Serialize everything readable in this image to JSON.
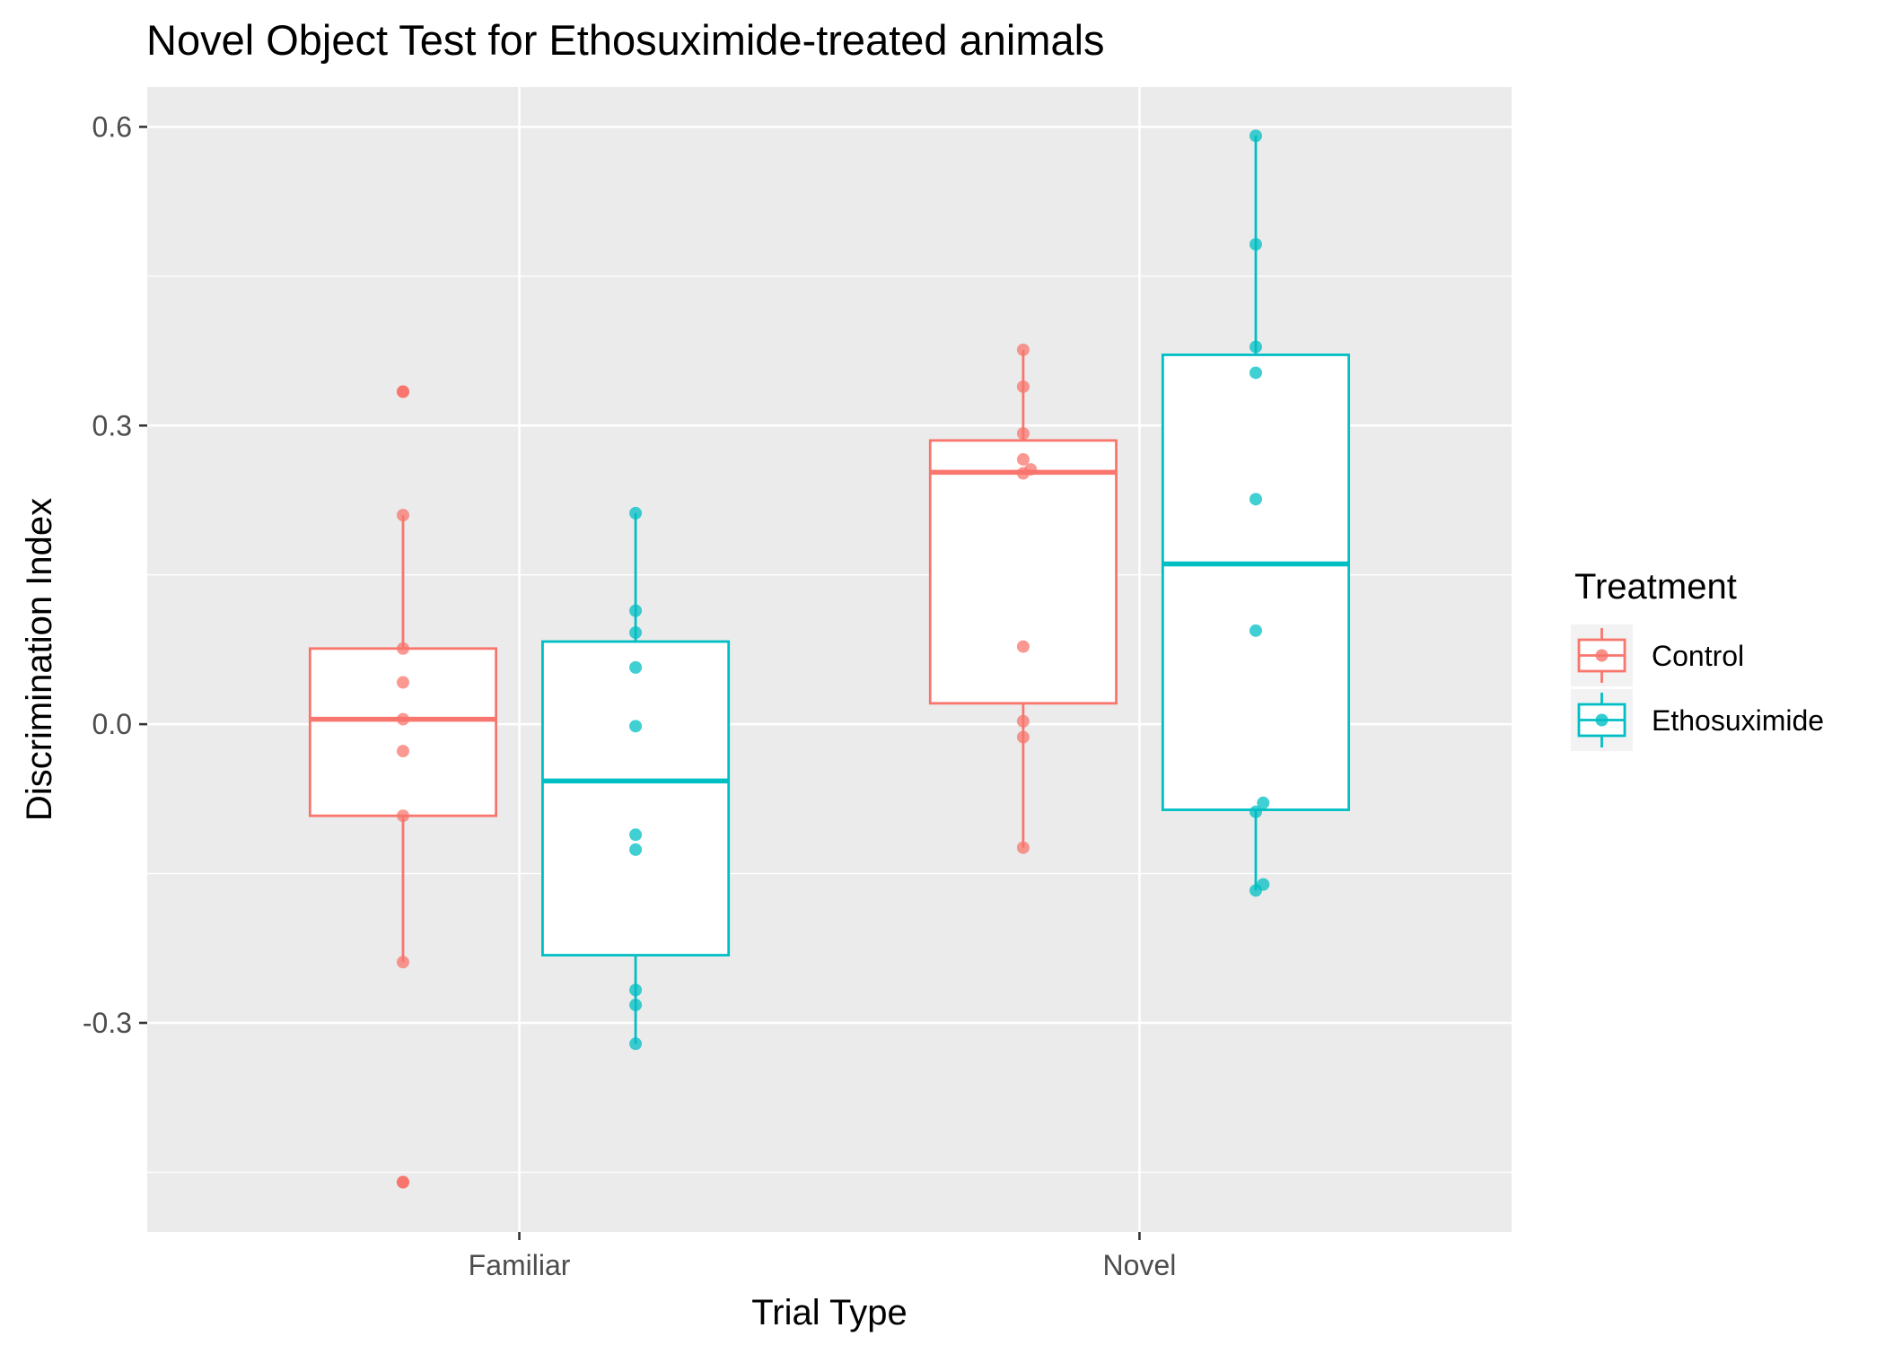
{
  "chart_data": {
    "type": "boxplot",
    "title": "Novel Object Test for Ethosuximide-treated animals",
    "xlabel": "Trial Type",
    "ylabel": "Discrimination Index",
    "categories": [
      "Familiar",
      "Novel"
    ],
    "ylim": [
      -0.51,
      0.64
    ],
    "y_ticks": [
      -0.3,
      0.0,
      0.3,
      0.6
    ],
    "y_tick_labels": [
      "-0.3",
      "0.0",
      "0.3",
      "0.6"
    ],
    "grid": true,
    "legend": {
      "title": "Treatment",
      "position": "right"
    },
    "series": [
      {
        "name": "Control",
        "color": "#F8766D",
        "boxes": [
          {
            "category": "Familiar",
            "lower_whisker": -0.239,
            "q1": -0.092,
            "median": 0.005,
            "q3": 0.076,
            "upper_whisker": 0.21,
            "outliers": [
              0.334,
              -0.46
            ]
          },
          {
            "category": "Novel",
            "lower_whisker": -0.124,
            "q1": 0.021,
            "median": 0.253,
            "q3": 0.285,
            "upper_whisker": 0.376,
            "outliers": []
          }
        ],
        "points": [
          {
            "category": "Familiar",
            "values": [
              0.334,
              0.21,
              0.076,
              0.042,
              0.005,
              -0.027,
              -0.092,
              -0.239,
              -0.46
            ]
          },
          {
            "category": "Novel",
            "values": [
              0.376,
              0.339,
              0.292,
              0.266,
              0.256,
              0.252,
              0.078,
              0.003,
              -0.013,
              -0.124
            ]
          }
        ]
      },
      {
        "name": "Ethosuximide",
        "color": "#00BFC4",
        "boxes": [
          {
            "category": "Familiar",
            "lower_whisker": -0.321,
            "q1": -0.232,
            "median": -0.057,
            "q3": 0.083,
            "upper_whisker": 0.212,
            "outliers": []
          },
          {
            "category": "Novel",
            "lower_whisker": -0.167,
            "q1": -0.086,
            "median": 0.161,
            "q3": 0.371,
            "upper_whisker": 0.591,
            "outliers": []
          }
        ],
        "points": [
          {
            "category": "Familiar",
            "values": [
              0.212,
              0.114,
              0.092,
              0.057,
              -0.002,
              -0.111,
              -0.126,
              -0.267,
              -0.282,
              -0.321
            ]
          },
          {
            "category": "Novel",
            "values": [
              0.591,
              0.482,
              0.379,
              0.353,
              0.226,
              0.094,
              -0.079,
              -0.088,
              -0.161,
              -0.167
            ]
          }
        ]
      }
    ]
  }
}
